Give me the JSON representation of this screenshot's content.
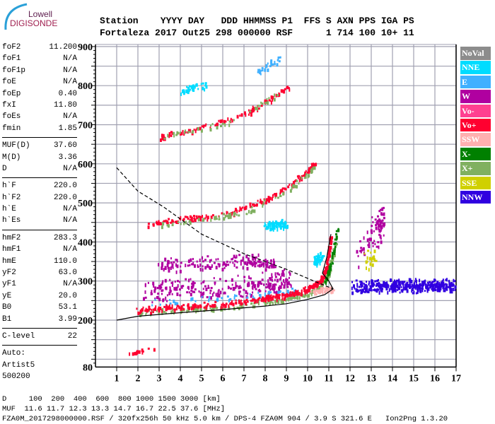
{
  "logo": {
    "line1": "Lowell",
    "line2": "DIGISONDE"
  },
  "header": {
    "line1": "Station    YYYY DAY   DDD HHMMSS P1  FFS S AXN PPS IGA PS",
    "line2": "Fortaleza 2017 Out25 298 000000 RSF      1 714 100 10+ 11"
  },
  "params": {
    "group1": [
      [
        "foF2",
        "11.200"
      ],
      [
        "foF1",
        "N/A"
      ],
      [
        "foF1p",
        "N/A"
      ],
      [
        "foE",
        "N/A"
      ],
      [
        "foEp",
        "0.40"
      ],
      [
        "fxI",
        "11.80"
      ],
      [
        "foEs",
        "N/A"
      ],
      [
        "fmin",
        "1.85"
      ]
    ],
    "group2": [
      [
        "MUF(D)",
        "37.60"
      ],
      [
        "M(D)",
        "3.36"
      ],
      [
        "D",
        "N/A"
      ]
    ],
    "group3": [
      [
        "h`F",
        "220.0"
      ],
      [
        "h`F2",
        "220.0"
      ],
      [
        "h`E",
        "N/A"
      ],
      [
        "h`Es",
        "N/A"
      ]
    ],
    "group4": [
      [
        "hmF2",
        "283.3"
      ],
      [
        "hmF1",
        "N/A"
      ],
      [
        "hmE",
        "110.0"
      ],
      [
        "yF2",
        "63.0"
      ],
      [
        "yF1",
        "N/A"
      ],
      [
        "yE",
        "20.0"
      ],
      [
        "B0",
        "53.1"
      ],
      [
        "B1",
        "3.99"
      ]
    ],
    "group5": [
      [
        "C-level",
        "22"
      ]
    ],
    "auto": [
      "Auto:",
      "Artist5",
      "500200"
    ]
  },
  "legend": [
    {
      "label": "NoVal",
      "color": "#8c8c8c"
    },
    {
      "label": "NNE",
      "color": "#00dcff"
    },
    {
      "label": "E",
      "color": "#40b0ff"
    },
    {
      "label": "W",
      "color": "#b000a0"
    },
    {
      "label": "Vo-",
      "color": "#ff4090"
    },
    {
      "label": "Vo+",
      "color": "#ff0030"
    },
    {
      "label": "SSW",
      "color": "#ffb0b0"
    },
    {
      "label": "X-",
      "color": "#008000"
    },
    {
      "label": "X+",
      "color": "#80b060"
    },
    {
      "label": "SSE",
      "color": "#d0d000"
    },
    {
      "label": "NNW",
      "color": "#3000e0"
    }
  ],
  "footer": {
    "line1": "D     100  200  400  600  800 1000 1500 3000 [km]",
    "line2": "MUF  11.6 11.7 12.3 13.3 14.7 16.7 22.5 37.6 [MHz]",
    "line3": "FZA0M_2017298000000.RSF / 320fx256h 50 kHz 5.0 km / DPS-4 FZA0M 904 / 3.9 S 321.6 E   Ion2Png 1.3.20"
  },
  "chart_data": {
    "type": "scatter",
    "xlim": [
      1,
      17
    ],
    "ylim": [
      80,
      900
    ],
    "xticks": [
      1,
      2,
      3,
      4,
      5,
      6,
      7,
      8,
      9,
      10,
      11,
      12,
      13,
      14,
      15,
      16,
      17
    ],
    "yticks": [
      80,
      200,
      300,
      400,
      500,
      600,
      700,
      800,
      900
    ],
    "grid": true,
    "legend_position": "right",
    "traces": [
      {
        "name": "W scatter low",
        "color": "#b000a0",
        "n": 260,
        "spread": [
          0.1,
          12
        ],
        "points": [
          [
            2.3,
            255
          ],
          [
            4,
            262
          ],
          [
            6,
            265
          ],
          [
            8,
            275
          ],
          [
            9.2,
            285
          ]
        ],
        "band": [
          0,
          40
        ]
      },
      {
        "name": "W scatter mid",
        "color": "#b000a0",
        "n": 160,
        "spread": [
          0.1,
          10
        ],
        "points": [
          [
            3,
            335
          ],
          [
            5,
            340
          ],
          [
            7,
            345
          ],
          [
            8.5,
            340
          ]
        ],
        "band": [
          -5,
          20
        ]
      },
      {
        "name": "E low",
        "color": "#40b0ff",
        "n": 60,
        "spread": [
          0.1,
          8
        ],
        "points": [
          [
            2.5,
            240
          ],
          [
            5,
            250
          ],
          [
            8,
            262
          ],
          [
            9.5,
            275
          ]
        ],
        "band": [
          0,
          10
        ]
      },
      {
        "name": "X+ trace",
        "color": "#80b060",
        "n": 220,
        "spread": [
          0.08,
          4
        ],
        "points": [
          [
            2.0,
            222
          ],
          [
            4,
            230
          ],
          [
            6,
            236
          ],
          [
            8,
            250
          ],
          [
            9,
            258
          ],
          [
            10,
            272
          ],
          [
            10.7,
            295
          ],
          [
            11,
            330
          ],
          [
            11.3,
            400
          ]
        ],
        "band": [
          -6,
          2
        ]
      },
      {
        "name": "Vo+ F trace",
        "color": "#ff0030",
        "n": 380,
        "spread": [
          0.06,
          4
        ],
        "points": [
          [
            1.9,
            225
          ],
          [
            4,
            236
          ],
          [
            6,
            241
          ],
          [
            8,
            256
          ],
          [
            9,
            265
          ],
          [
            10,
            280
          ],
          [
            10.6,
            300
          ],
          [
            10.9,
            340
          ],
          [
            11.1,
            420
          ]
        ],
        "band": [
          -3,
          6
        ]
      },
      {
        "name": "X- trace",
        "color": "#008000",
        "n": 50,
        "spread": [
          0.05,
          5
        ],
        "points": [
          [
            10.8,
            300
          ],
          [
            11.1,
            350
          ],
          [
            11.4,
            440
          ]
        ],
        "band": [
          0,
          0
        ]
      },
      {
        "name": "SSW nose",
        "color": "#ffb0b0",
        "n": 50,
        "spread": [
          0.15,
          6
        ],
        "points": [
          [
            10.2,
            272
          ],
          [
            11.2,
            278
          ]
        ],
        "band": [
          0,
          6
        ]
      },
      {
        "name": "2nd hop Vo+",
        "color": "#ff0030",
        "n": 200,
        "spread": [
          0.06,
          5
        ],
        "points": [
          [
            2.4,
            445
          ],
          [
            4,
            458
          ],
          [
            6,
            470
          ],
          [
            8,
            508
          ],
          [
            9,
            540
          ],
          [
            10,
            585
          ],
          [
            10.3,
            600
          ]
        ],
        "band": [
          -3,
          5
        ]
      },
      {
        "name": "2nd hop X+",
        "color": "#80b060",
        "n": 80,
        "spread": [
          0.06,
          5
        ],
        "points": [
          [
            3,
            450
          ],
          [
            5,
            462
          ],
          [
            7,
            480
          ],
          [
            9,
            535
          ],
          [
            10.3,
            598
          ]
        ],
        "band": [
          -6,
          0
        ]
      },
      {
        "name": "3rd hop Vo+",
        "color": "#ff0030",
        "n": 110,
        "spread": [
          0.06,
          5
        ],
        "points": [
          [
            3,
            670
          ],
          [
            5,
            695
          ],
          [
            7,
            728
          ],
          [
            8,
            760
          ],
          [
            9.2,
            800
          ]
        ],
        "band": [
          -3,
          3
        ]
      },
      {
        "name": "3rd hop X+",
        "color": "#80b060",
        "n": 40,
        "spread": [
          0.06,
          5
        ],
        "points": [
          [
            3.2,
            675
          ],
          [
            6,
            705
          ],
          [
            8.5,
            780
          ]
        ],
        "band": [
          -5,
          0
        ]
      },
      {
        "name": "4th hop NNE",
        "color": "#00dcff",
        "n": 40,
        "spread": [
          0.1,
          8
        ],
        "points": [
          [
            4,
            785
          ],
          [
            5.2,
            800
          ]
        ],
        "band": [
          0,
          10
        ]
      },
      {
        "name": "4th hop E",
        "color": "#40b0ff",
        "n": 30,
        "spread": [
          0.1,
          8
        ],
        "points": [
          [
            7.5,
            830
          ],
          [
            8.8,
            870
          ]
        ],
        "band": [
          0,
          10
        ]
      },
      {
        "name": "NNE mid",
        "color": "#00dcff",
        "n": 70,
        "spread": [
          0.12,
          8
        ],
        "points": [
          [
            8,
            440
          ],
          [
            9,
            445
          ]
        ],
        "band": [
          0,
          8
        ]
      },
      {
        "name": "NNE 10.5",
        "color": "#00dcff",
        "n": 50,
        "spread": [
          0.12,
          10
        ],
        "points": [
          [
            10.3,
            350
          ],
          [
            10.6,
            360
          ]
        ],
        "band": [
          0,
          10
        ]
      },
      {
        "name": "W east",
        "color": "#b000a0",
        "n": 90,
        "spread": [
          0.12,
          25
        ],
        "points": [
          [
            12.3,
            370
          ],
          [
            13.3,
            420
          ],
          [
            13.5,
            450
          ]
        ],
        "band": [
          -10,
          40
        ]
      },
      {
        "name": "SSE east",
        "color": "#d0d000",
        "n": 20,
        "spread": [
          0.15,
          20
        ],
        "points": [
          [
            12.6,
            340
          ],
          [
            13.2,
            360
          ]
        ],
        "band": [
          0,
          20
        ]
      },
      {
        "name": "NNW blob",
        "color": "#3000e0",
        "n": 420,
        "spread": [
          0.6,
          8
        ],
        "points": [
          [
            12.5,
            285
          ],
          [
            14,
            290
          ],
          [
            15.5,
            288
          ],
          [
            17,
            290
          ]
        ],
        "band": [
          -10,
          12
        ]
      },
      {
        "name": "E-region",
        "color": "#ff0030",
        "n": 14,
        "spread": [
          0.08,
          3
        ],
        "points": [
          [
            1.6,
            115
          ],
          [
            2.2,
            125
          ],
          [
            2.7,
            130
          ]
        ],
        "band": [
          0,
          0
        ]
      }
    ],
    "profile_solid": [
      [
        1,
        200
      ],
      [
        2,
        210
      ],
      [
        4,
        219
      ],
      [
        6,
        227
      ],
      [
        8,
        236
      ],
      [
        9,
        242
      ],
      [
        10,
        253
      ],
      [
        10.8,
        265
      ],
      [
        11.2,
        280
      ],
      [
        11.0,
        300
      ],
      [
        10.7,
        320
      ],
      [
        10.9,
        360
      ],
      [
        11.1,
        420
      ]
    ],
    "profile_dashed": [
      [
        1,
        590
      ],
      [
        2,
        530
      ],
      [
        3.2,
        490
      ],
      [
        5,
        420
      ],
      [
        7,
        370
      ],
      [
        9,
        330
      ],
      [
        10.3,
        300
      ],
      [
        11.2,
        280
      ]
    ]
  }
}
